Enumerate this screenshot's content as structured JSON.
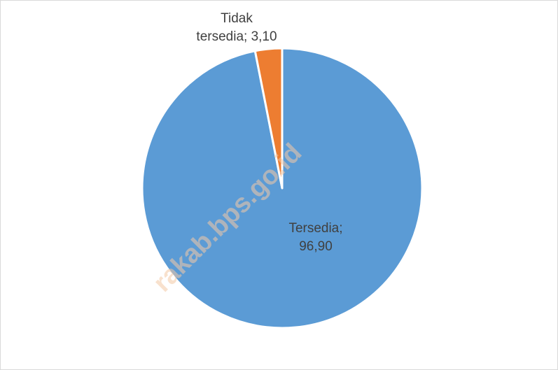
{
  "chart_data": {
    "type": "pie",
    "categories": [
      "Tersedia",
      "Tidak tersedia"
    ],
    "values": [
      96.9,
      3.1
    ],
    "colors": [
      "#5b9bd5",
      "#ed7d31"
    ],
    "labels": [
      {
        "line1": "Tersedia;",
        "line2": "96,90"
      },
      {
        "line1": "Tidak",
        "line2": "tersedia; 3,10"
      }
    ],
    "start_angle_deg": 0,
    "direction": "clockwise",
    "title": "",
    "legend": "none"
  },
  "watermark": {
    "text": "rakab.bps.go.id",
    "color": "#f4c9a6"
  }
}
